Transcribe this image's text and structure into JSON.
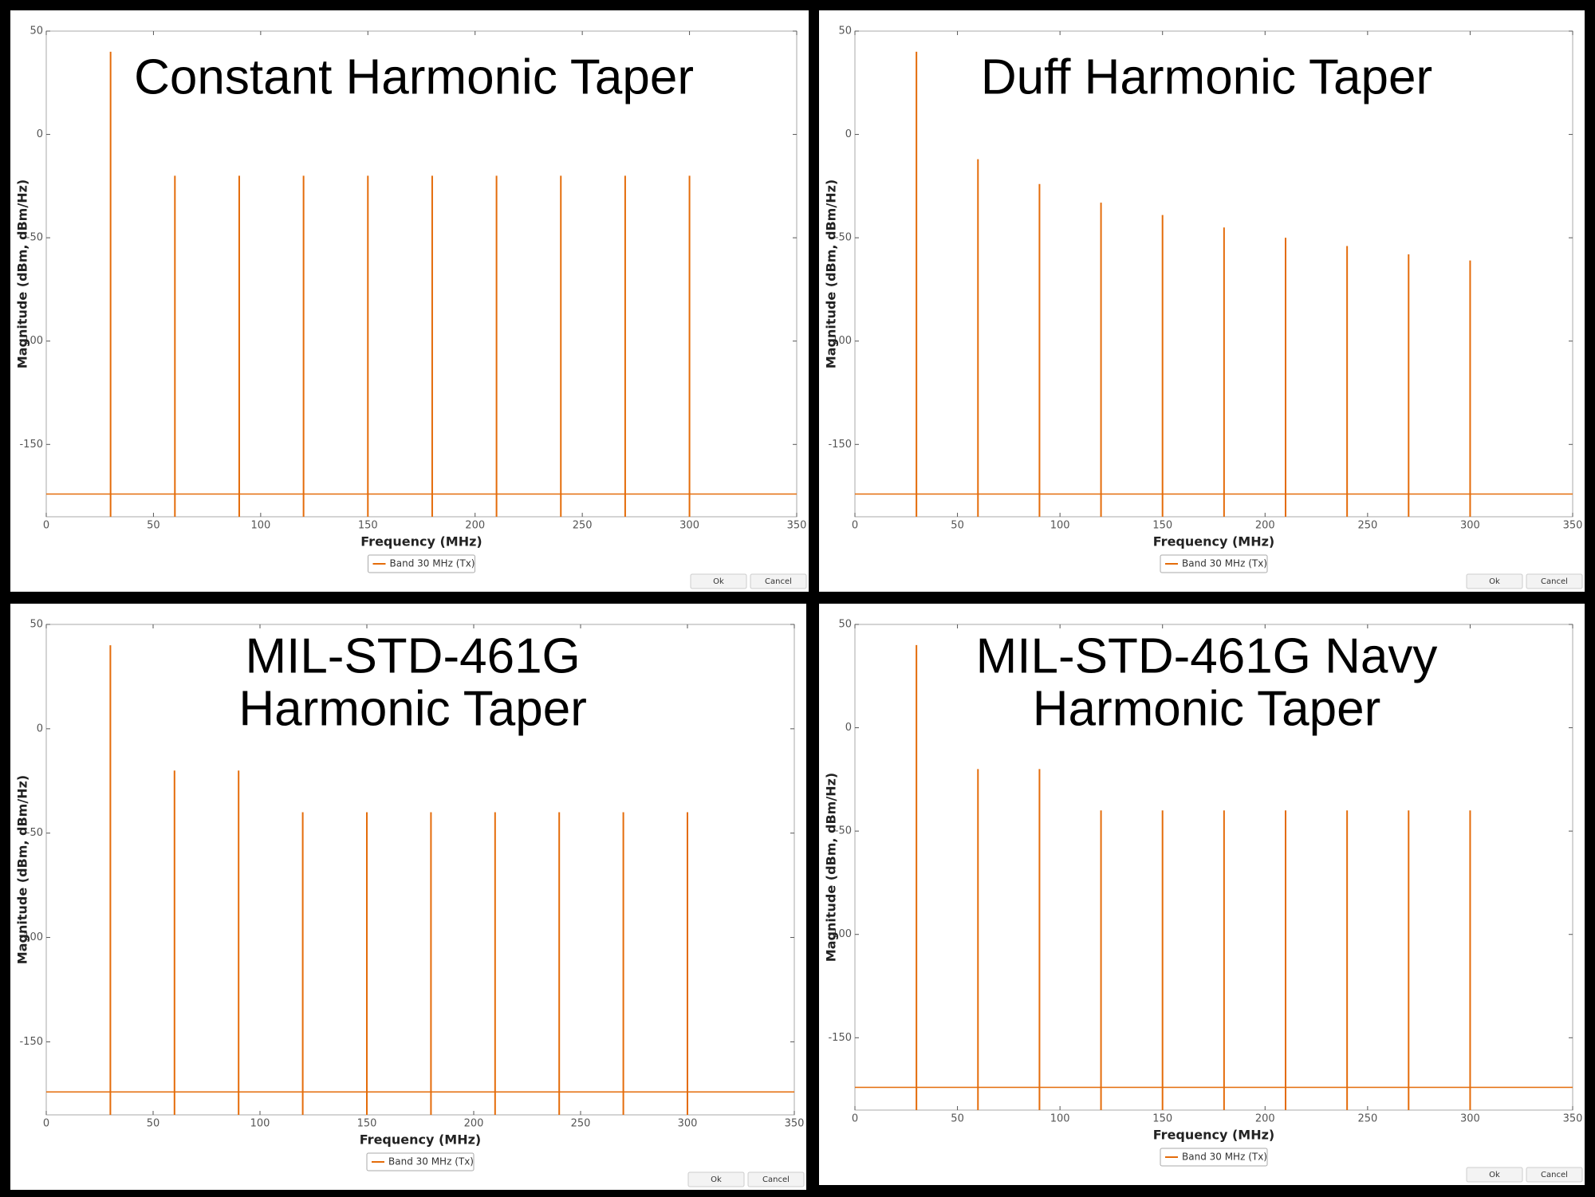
{
  "chart_data": [
    {
      "type": "stem",
      "title": [
        "Constant Harmonic Taper"
      ],
      "xlabel": "Frequency (MHz)",
      "ylabel": "Magnitude (dBm, dBm/Hz)",
      "xlim": [
        0,
        350
      ],
      "xticks": [
        0,
        50,
        100,
        150,
        200,
        250,
        300,
        350
      ],
      "ylim": [
        -185,
        50
      ],
      "yticks": [
        50,
        0,
        -50,
        -100,
        -150
      ],
      "x": [
        30,
        60,
        90,
        120,
        150,
        180,
        210,
        240,
        270,
        300
      ],
      "floor": -174,
      "series": [
        {
          "name": "Band 30 MHz (Tx)",
          "color": "#e46c0a",
          "values": [
            40,
            -20,
            -20,
            -20,
            -20,
            -20,
            -20,
            -20,
            -20,
            -20
          ]
        }
      ]
    },
    {
      "type": "stem",
      "title": [
        "Duff Harmonic Taper"
      ],
      "xlabel": "Frequency (MHz)",
      "ylabel": "Magnitude (dBm, dBm/Hz)",
      "xlim": [
        0,
        350
      ],
      "xticks": [
        0,
        50,
        100,
        150,
        200,
        250,
        300,
        350
      ],
      "ylim": [
        -185,
        50
      ],
      "yticks": [
        50,
        0,
        -50,
        -100,
        -150
      ],
      "x": [
        30,
        60,
        90,
        120,
        150,
        180,
        210,
        240,
        270,
        300
      ],
      "floor": -174,
      "series": [
        {
          "name": "Band 30 MHz (Tx)",
          "color": "#e46c0a",
          "values": [
            40,
            -12,
            -24,
            -33,
            -39,
            -45,
            -50,
            -54,
            -58,
            -61
          ]
        }
      ]
    },
    {
      "type": "stem",
      "title": [
        "MIL-STD-461G",
        "Harmonic Taper"
      ],
      "xlabel": "Frequency (MHz)",
      "ylabel": "Magnitude (dBm, dBm/Hz)",
      "xlim": [
        0,
        350
      ],
      "xticks": [
        0,
        50,
        100,
        150,
        200,
        250,
        300,
        350
      ],
      "ylim": [
        -185,
        50
      ],
      "yticks": [
        50,
        0,
        -50,
        -100,
        -150
      ],
      "x": [
        30,
        60,
        90,
        120,
        150,
        180,
        210,
        240,
        270,
        300
      ],
      "floor": -174,
      "series": [
        {
          "name": "Band 30 MHz (Tx)",
          "color": "#e46c0a",
          "values": [
            40,
            -20,
            -20,
            -40,
            -40,
            -40,
            -40,
            -40,
            -40,
            -40
          ]
        }
      ]
    },
    {
      "type": "stem",
      "title": [
        "MIL-STD-461G Navy",
        "Harmonic Taper"
      ],
      "xlabel": "Frequency (MHz)",
      "ylabel": "Magnitude (dBm, dBm/Hz)",
      "xlim": [
        0,
        350
      ],
      "xticks": [
        0,
        50,
        100,
        150,
        200,
        250,
        300,
        350
      ],
      "ylim": [
        -185,
        50
      ],
      "yticks": [
        50,
        0,
        -50,
        -100,
        -150
      ],
      "x": [
        30,
        60,
        90,
        120,
        150,
        180,
        210,
        240,
        270,
        300
      ],
      "floor": -174,
      "series": [
        {
          "name": "Band 30 MHz (Tx)",
          "color": "#e46c0a",
          "values": [
            40,
            -20,
            -20,
            -40,
            -40,
            -40,
            -40,
            -40,
            -40,
            -40
          ]
        }
      ]
    }
  ],
  "buttons": [
    "Ok",
    "Cancel"
  ]
}
